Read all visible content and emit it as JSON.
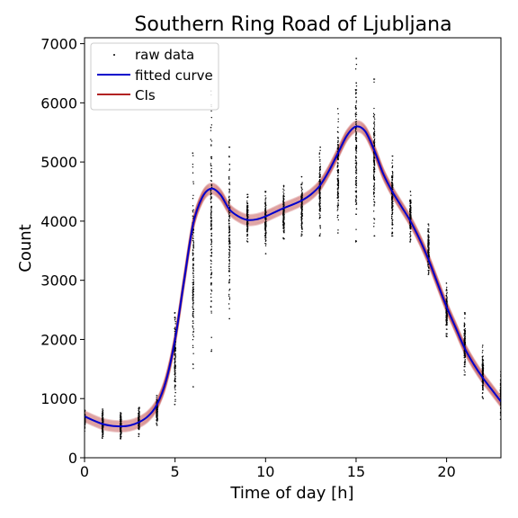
{
  "chart_data": {
    "type": "line",
    "title": "Southern Ring Road of Ljubljana",
    "xlabel": "Time of day [h]",
    "ylabel": "Count",
    "xlim": [
      0,
      23
    ],
    "ylim": [
      0,
      7100
    ],
    "x_ticks": [
      0,
      5,
      10,
      15,
      20
    ],
    "y_ticks": [
      0,
      1000,
      2000,
      3000,
      4000,
      5000,
      6000,
      7000
    ],
    "grid": false,
    "legend_position": "top-left",
    "colors": {
      "raw_data": "#000000",
      "fitted_curve": "#0000cc",
      "cis": "#b22222"
    },
    "legend": [
      "raw data",
      "fitted curve",
      "CIs"
    ],
    "fitted_curve": {
      "x": [
        0,
        0.5,
        1,
        1.5,
        2,
        2.5,
        3,
        3.5,
        4,
        4.5,
        5,
        5.5,
        6,
        6.5,
        7,
        7.5,
        8,
        8.5,
        9,
        9.5,
        10,
        10.5,
        11,
        11.5,
        12,
        12.5,
        13,
        13.5,
        14,
        14.5,
        15,
        15.5,
        16,
        16.5,
        17,
        17.5,
        18,
        18.5,
        19,
        19.5,
        20,
        20.5,
        21,
        21.5,
        22,
        22.5,
        23
      ],
      "y": [
        700,
        630,
        570,
        540,
        530,
        545,
        600,
        700,
        900,
        1300,
        2000,
        3000,
        3950,
        4400,
        4550,
        4450,
        4200,
        4080,
        4020,
        4030,
        4080,
        4150,
        4220,
        4280,
        4350,
        4450,
        4600,
        4850,
        5150,
        5450,
        5600,
        5520,
        5200,
        4800,
        4500,
        4250,
        4000,
        3700,
        3350,
        2950,
        2550,
        2200,
        1850,
        1580,
        1350,
        1150,
        950
      ]
    },
    "ci_halfwidth": 90,
    "raw_data": [
      {
        "x": 0,
        "min": 450,
        "max": 800
      },
      {
        "x": 1,
        "min": 330,
        "max": 820
      },
      {
        "x": 2,
        "min": 320,
        "max": 760
      },
      {
        "x": 3,
        "min": 360,
        "max": 850
      },
      {
        "x": 4,
        "min": 550,
        "max": 1050
      },
      {
        "x": 5,
        "min": 900,
        "max": 2450
      },
      {
        "x": 6,
        "min": 1200,
        "max": 5150
      },
      {
        "x": 7,
        "min": 1800,
        "max": 6200
      },
      {
        "x": 8,
        "min": 2350,
        "max": 5250
      },
      {
        "x": 9,
        "min": 3650,
        "max": 4450
      },
      {
        "x": 10,
        "min": 3450,
        "max": 4500
      },
      {
        "x": 11,
        "min": 3700,
        "max": 4600
      },
      {
        "x": 12,
        "min": 3750,
        "max": 4750
      },
      {
        "x": 13,
        "min": 3750,
        "max": 5250
      },
      {
        "x": 14,
        "min": 3800,
        "max": 5900
      },
      {
        "x": 15,
        "min": 3650,
        "max": 6750
      },
      {
        "x": 16,
        "min": 3750,
        "max": 6400
      },
      {
        "x": 17,
        "min": 3750,
        "max": 5100
      },
      {
        "x": 18,
        "min": 3650,
        "max": 4500
      },
      {
        "x": 19,
        "min": 3100,
        "max": 3950
      },
      {
        "x": 20,
        "min": 2050,
        "max": 2950
      },
      {
        "x": 21,
        "min": 1400,
        "max": 2450
      },
      {
        "x": 22,
        "min": 1000,
        "max": 1900
      },
      {
        "x": 23,
        "min": 650,
        "max": 1500
      }
    ]
  }
}
